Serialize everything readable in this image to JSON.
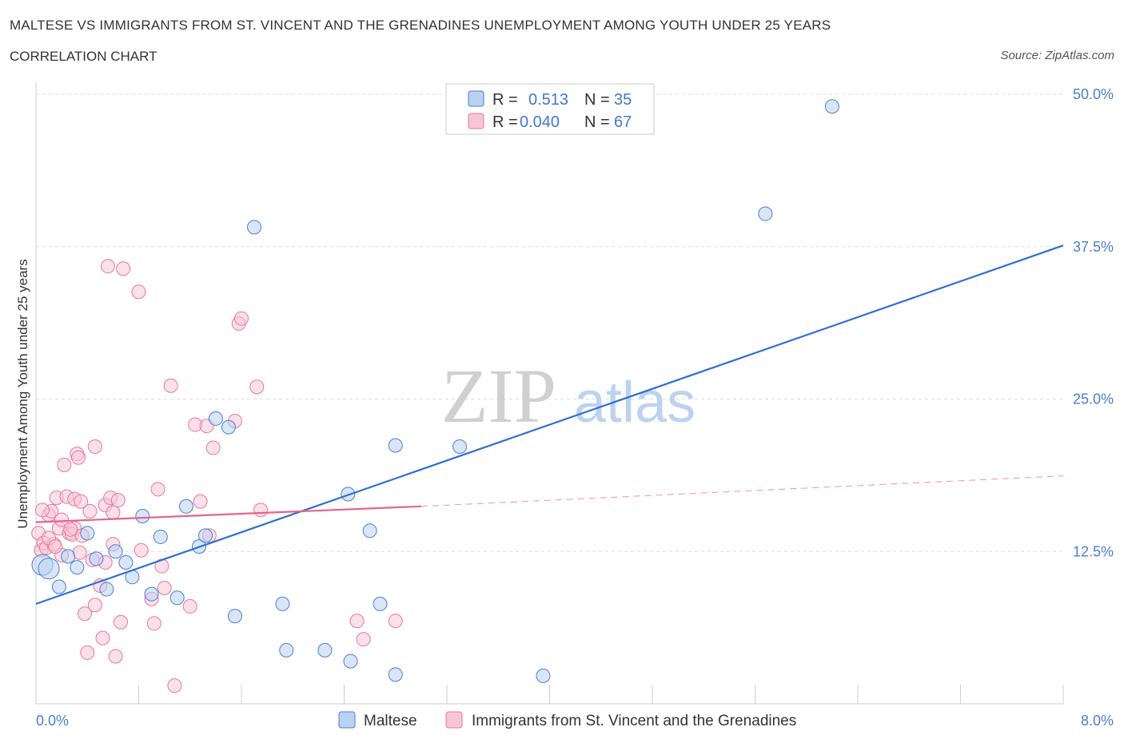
{
  "title": "MALTESE VS IMMIGRANTS FROM ST. VINCENT AND THE GRENADINES UNEMPLOYMENT AMONG YOUTH UNDER 25 YEARS",
  "subtitle": "CORRELATION CHART",
  "source": "Source: ZipAtlas.com",
  "watermark": {
    "zip": "ZIP",
    "atlas": "atlas"
  },
  "colors": {
    "blue": "#4a7fcf",
    "blue_fill": "#b9d1f3",
    "blue_line": "#2f6fd0",
    "pink": "#e8779b",
    "pink_fill": "#f6c6d6",
    "pink_line": "#e5638e"
  },
  "chart_data": {
    "type": "scatter",
    "title": "MALTESE VS IMMIGRANTS FROM ST. VINCENT AND THE GRENADINES UNEMPLOYMENT AMONG YOUTH UNDER 25 YEARS",
    "ylabel": "Unemployment Among Youth under 25 years",
    "xlabel": "",
    "xlim": [
      0,
      8
    ],
    "ylim": [
      0,
      50
    ],
    "x_tick_labels": [
      "0.0%",
      "8.0%"
    ],
    "y_ticks": [
      12.5,
      25.0,
      37.5,
      50.0
    ],
    "y_tick_labels": [
      "12.5%",
      "25.0%",
      "37.5%",
      "50.0%"
    ],
    "grid": "horizontal dashed",
    "legend": {
      "position": "top-center",
      "entries": [
        {
          "r_label": "R =",
          "r_value": "0.513",
          "n_label": "N =",
          "n_value": "35"
        },
        {
          "r_label": "R =",
          "r_value": "0.040",
          "n_label": "N =",
          "n_value": "67"
        }
      ]
    },
    "series": [
      {
        "name": "Maltese",
        "r": 0.513,
        "n": 35,
        "trend": {
          "x": [
            0.0,
            8.0
          ],
          "y": [
            8.2,
            37.6
          ]
        },
        "points": [
          [
            0.05,
            11.4
          ],
          [
            0.1,
            11.1
          ],
          [
            0.18,
            9.6
          ],
          [
            0.25,
            12.1
          ],
          [
            0.32,
            11.2
          ],
          [
            0.4,
            14.0
          ],
          [
            0.47,
            11.9
          ],
          [
            0.55,
            9.4
          ],
          [
            0.62,
            12.5
          ],
          [
            0.7,
            11.6
          ],
          [
            0.75,
            10.4
          ],
          [
            0.83,
            15.4
          ],
          [
            0.9,
            9.0
          ],
          [
            0.97,
            13.7
          ],
          [
            1.1,
            8.7
          ],
          [
            1.17,
            16.2
          ],
          [
            1.27,
            12.9
          ],
          [
            1.32,
            13.8
          ],
          [
            1.4,
            23.4
          ],
          [
            1.5,
            22.7
          ],
          [
            1.55,
            7.2
          ],
          [
            1.7,
            39.1
          ],
          [
            1.92,
            8.2
          ],
          [
            1.95,
            4.4
          ],
          [
            2.25,
            4.4
          ],
          [
            2.45,
            3.5
          ],
          [
            2.43,
            17.2
          ],
          [
            2.6,
            14.2
          ],
          [
            2.68,
            8.2
          ],
          [
            2.8,
            2.4
          ],
          [
            2.8,
            21.2
          ],
          [
            3.3,
            21.1
          ],
          [
            3.95,
            2.3
          ],
          [
            5.68,
            40.2
          ],
          [
            6.2,
            49.0
          ]
        ]
      },
      {
        "name": "Immigrants from St. Vincent and the Grenadines",
        "r": 0.04,
        "n": 67,
        "trend": {
          "x": [
            0.0,
            3.0,
            8.0
          ],
          "y": [
            14.9,
            16.2,
            18.7
          ]
        },
        "points": [
          [
            0.02,
            14.0
          ],
          [
            0.04,
            12.6
          ],
          [
            0.06,
            13.2
          ],
          [
            0.08,
            12.8
          ],
          [
            0.1,
            15.5
          ],
          [
            0.12,
            15.8
          ],
          [
            0.14,
            13.1
          ],
          [
            0.16,
            16.9
          ],
          [
            0.18,
            14.4
          ],
          [
            0.2,
            15.1
          ],
          [
            0.2,
            12.2
          ],
          [
            0.22,
            19.6
          ],
          [
            0.24,
            17.0
          ],
          [
            0.26,
            14.0
          ],
          [
            0.28,
            13.9
          ],
          [
            0.3,
            16.8
          ],
          [
            0.3,
            14.4
          ],
          [
            0.32,
            20.5
          ],
          [
            0.33,
            20.2
          ],
          [
            0.34,
            12.4
          ],
          [
            0.36,
            13.8
          ],
          [
            0.38,
            7.4
          ],
          [
            0.4,
            4.2
          ],
          [
            0.42,
            15.8
          ],
          [
            0.44,
            11.8
          ],
          [
            0.46,
            21.1
          ],
          [
            0.46,
            8.1
          ],
          [
            0.5,
            9.7
          ],
          [
            0.52,
            5.4
          ],
          [
            0.54,
            11.6
          ],
          [
            0.54,
            16.3
          ],
          [
            0.56,
            35.9
          ],
          [
            0.58,
            16.9
          ],
          [
            0.6,
            13.1
          ],
          [
            0.6,
            15.7
          ],
          [
            0.62,
            3.9
          ],
          [
            0.64,
            16.7
          ],
          [
            0.66,
            6.7
          ],
          [
            0.68,
            35.7
          ],
          [
            0.8,
            33.8
          ],
          [
            0.82,
            12.6
          ],
          [
            0.9,
            8.6
          ],
          [
            0.92,
            6.6
          ],
          [
            0.95,
            17.6
          ],
          [
            0.98,
            11.3
          ],
          [
            1.0,
            9.5
          ],
          [
            1.05,
            26.1
          ],
          [
            1.08,
            1.5
          ],
          [
            1.2,
            8.0
          ],
          [
            1.24,
            22.9
          ],
          [
            1.28,
            16.6
          ],
          [
            1.33,
            22.8
          ],
          [
            1.35,
            13.8
          ],
          [
            1.38,
            21.0
          ],
          [
            1.55,
            23.2
          ],
          [
            1.58,
            31.2
          ],
          [
            1.6,
            31.6
          ],
          [
            1.72,
            26.0
          ],
          [
            1.75,
            15.9
          ],
          [
            2.5,
            6.8
          ],
          [
            2.55,
            5.3
          ],
          [
            2.8,
            6.8
          ],
          [
            0.05,
            15.9
          ],
          [
            0.1,
            13.6
          ],
          [
            0.27,
            14.3
          ],
          [
            0.15,
            12.9
          ],
          [
            0.35,
            16.6
          ]
        ]
      }
    ]
  }
}
